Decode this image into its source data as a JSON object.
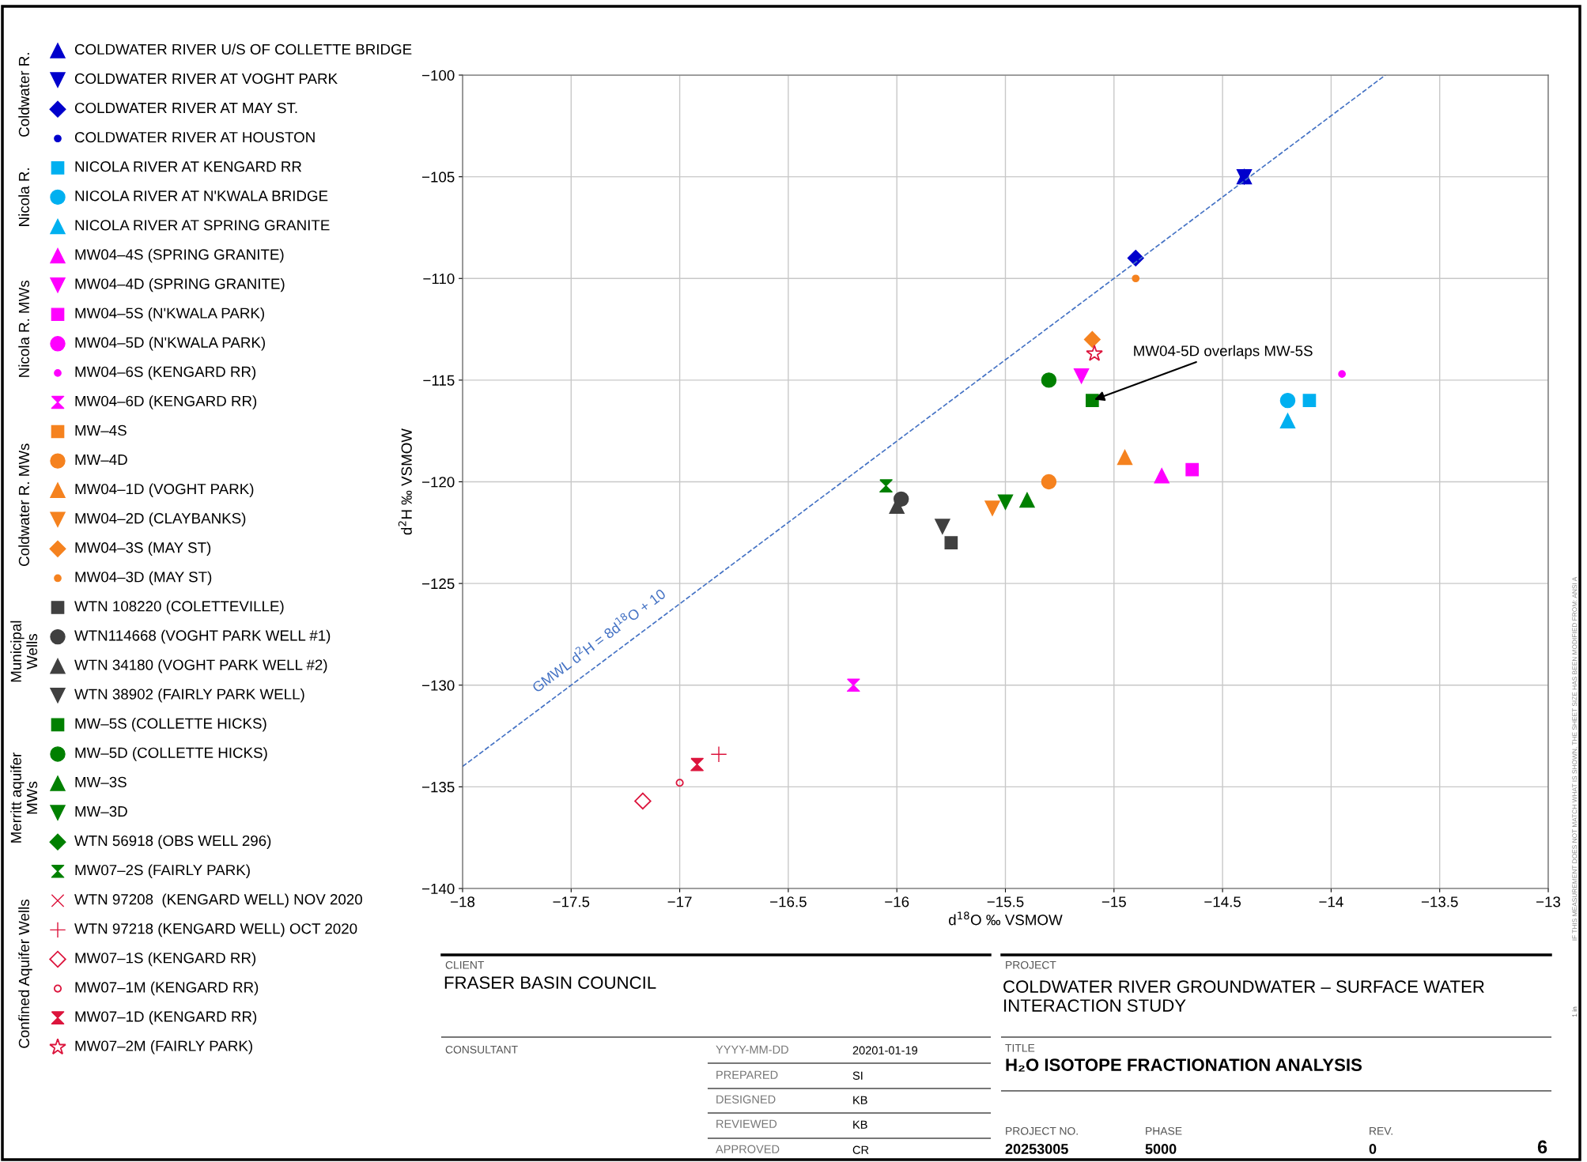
{
  "chart_data": {
    "type": "scatter",
    "title": "H₂O ISOTOPE FRACTIONATION ANALYSIS",
    "xlabel": "d$^{18}$O ‰ VSMOW",
    "ylabel": "d$^{2}$H ‰ VSMOW",
    "xlim": [
      -18,
      -13
    ],
    "ylim": [
      -140,
      -100
    ],
    "xticks": [
      {
        "value": -18,
        "label": "−18"
      },
      {
        "value": -17.5,
        "label": "−17.5"
      },
      {
        "value": -17,
        "label": "−17"
      },
      {
        "value": -16.5,
        "label": "−16.5"
      },
      {
        "value": -16,
        "label": "−16"
      },
      {
        "value": -15.5,
        "label": "−15.5"
      },
      {
        "value": -15,
        "label": "−15"
      },
      {
        "value": -14.5,
        "label": "−14.5"
      },
      {
        "value": -14,
        "label": "−14"
      },
      {
        "value": -13.5,
        "label": "−13.5"
      },
      {
        "value": -13,
        "label": "−13"
      }
    ],
    "yticks": [
      {
        "value": -140,
        "label": "−140"
      },
      {
        "value": -135,
        "label": "−135"
      },
      {
        "value": -130,
        "label": "−130"
      },
      {
        "value": -125,
        "label": "−125"
      },
      {
        "value": -120,
        "label": "−120"
      },
      {
        "value": -115,
        "label": "−115"
      },
      {
        "value": -110,
        "label": "−110"
      },
      {
        "value": -105,
        "label": "−105"
      },
      {
        "value": -100,
        "label": "−100"
      }
    ],
    "grid": true,
    "legend": "left",
    "series": [
      {
        "name": "COLDWATER RIVER U/S OF COLLETTE BRIDGE",
        "color": "#0000cc",
        "marker": "triangle",
        "x": [
          -14.4
        ],
        "values": [
          -105
        ]
      },
      {
        "name": "COLDWATER RIVER AT VOGHT PARK",
        "color": "#0000cc",
        "marker": "triangle_down",
        "x": [
          -14.4
        ],
        "values": [
          -105
        ]
      },
      {
        "name": "COLDWATER RIVER AT MAY ST.",
        "color": "#0000cc",
        "marker": "diamond",
        "x": [
          -14.9
        ],
        "values": [
          -109
        ]
      },
      {
        "name": "COLDWATER RIVER AT HOUSTON",
        "color": "#0000cc",
        "marker": "point",
        "x": [
          null
        ],
        "values": [
          null
        ]
      },
      {
        "name": "NICOLA RIVER AT KENGARD RR",
        "color": "#00b0f0",
        "marker": "square",
        "x": [
          -14.1
        ],
        "values": [
          -116
        ]
      },
      {
        "name": "NICOLA RIVER AT N'KWALA BRIDGE",
        "color": "#00b0f0",
        "marker": "circle",
        "x": [
          -14.2
        ],
        "values": [
          -116
        ]
      },
      {
        "name": "NICOLA RIVER AT SPRING GRANITE",
        "color": "#00b0f0",
        "marker": "triangle",
        "x": [
          -14.2
        ],
        "values": [
          -117
        ]
      },
      {
        "name": "MW04–4S (SPRING GRANITE)",
        "color": "#ff00ff",
        "marker": "triangle",
        "x": [
          -14.78
        ],
        "values": [
          -119.7
        ]
      },
      {
        "name": "MW04–4D (SPRING GRANITE)",
        "color": "#ff00ff",
        "marker": "triangle_down",
        "x": [
          -15.15
        ],
        "values": [
          -114.8
        ]
      },
      {
        "name": "MW04–5S (N'KWALA PARK)",
        "color": "#ff00ff",
        "marker": "square",
        "x": [
          -14.64
        ],
        "values": [
          -119.4
        ]
      },
      {
        "name": "MW04–5D (N'KWALA PARK)",
        "color": "#ff00ff",
        "marker": "circle",
        "x": [
          null
        ],
        "values": [
          null
        ]
      },
      {
        "name": "MW04–6S (KENGARD RR)",
        "color": "#ff00ff",
        "marker": "point",
        "x": [
          -13.95
        ],
        "values": [
          -114.7
        ]
      },
      {
        "name": "MW04–6D (KENGARD RR)",
        "color": "#ff00ff",
        "x": [
          -16.2
        ],
        "values": [
          -130
        ]
      },
      {
        "name": "MW–4S",
        "color": "#f5821f",
        "marker": "square",
        "x": [
          null
        ],
        "values": [
          null
        ]
      },
      {
        "name": "MW–4D",
        "color": "#f5821f",
        "marker": "circle",
        "x": [
          -15.3
        ],
        "values": [
          -120
        ]
      },
      {
        "name": "MW04–1D (VOGHT PARK)",
        "color": "#f5821f",
        "marker": "triangle",
        "x": [
          -14.95
        ],
        "values": [
          -118.8
        ]
      },
      {
        "name": "MW04–2D (CLAYBANKS)",
        "color": "#f5821f",
        "marker": "triangle_down",
        "x": [
          -15.56
        ],
        "values": [
          -121.3
        ]
      },
      {
        "name": "MW04–3S (MAY ST)",
        "color": "#f5821f",
        "marker": "diamond",
        "x": [
          -15.1
        ],
        "values": [
          -113
        ]
      },
      {
        "name": "MW04–3D (MAY ST)",
        "color": "#f5821f",
        "marker": "point",
        "x": [
          -14.9
        ],
        "values": [
          -110
        ]
      },
      {
        "name": "WTN 108220 (COLETTEVILLE)",
        "color": "#404040",
        "marker": "square",
        "x": [
          -15.75
        ],
        "values": [
          -123
        ]
      },
      {
        "name": "WTN114668 (VOGHT PARK WELL #1)",
        "color": "#404040",
        "marker": "circle",
        "x": [
          -15.98
        ],
        "values": [
          -120.85
        ]
      },
      {
        "name": "WTN 34180 (VOGHT PARK WELL #2)",
        "color": "#404040",
        "marker": "triangle",
        "x": [
          -16.0
        ],
        "values": [
          -121.2
        ]
      },
      {
        "name": "WTN 38902 (FAIRLY PARK WELL)",
        "color": "#404040",
        "marker": "triangle_down",
        "x": [
          -15.79
        ],
        "values": [
          -122.2
        ]
      },
      {
        "name": "MW–5S (COLLETTE HICKS)",
        "color": "#008000",
        "marker": "square",
        "x": [
          -15.1
        ],
        "values": [
          -116
        ]
      },
      {
        "name": "MW–5D (COLLETTE HICKS)",
        "color": "#008000",
        "marker": "circle",
        "x": [
          -15.3
        ],
        "values": [
          -115
        ]
      },
      {
        "name": "MW–3S",
        "color": "#008000",
        "marker": "triangle",
        "x": [
          -15.4
        ],
        "values": [
          -120.9
        ]
      },
      {
        "name": "MW–3D",
        "color": "#008000",
        "marker": "triangle_down",
        "x": [
          -15.5
        ],
        "values": [
          -121
        ]
      },
      {
        "name": "WTN 56918 (OBS WELL 296)",
        "color": "#008000",
        "marker": "diamond",
        "x": [
          null
        ],
        "values": [
          null
        ]
      },
      {
        "name": "MW07–2S (FAIRLY PARK)",
        "color": "#008000",
        "x": [
          -16.05
        ],
        "values": [
          -120.2
        ]
      },
      {
        "name": "WTN 97208  (KENGARD WELL) NOV 2020",
        "color": "#dc143c",
        "marker": "x",
        "x": [
          null
        ],
        "values": [
          null
        ]
      },
      {
        "name": "WTN 97218 (KENGARD WELL) OCT 2020",
        "color": "#dc143c",
        "marker": "plus",
        "x": [
          -16.82
        ],
        "values": [
          -133.4
        ]
      },
      {
        "name": "MW07–1S (KENGARD RR)",
        "color": "#dc143c",
        "marker": "diamond_open",
        "x": [
          -17.17
        ],
        "values": [
          -135.7
        ]
      },
      {
        "name": "MW07–1M (KENGARD RR)",
        "color": "#dc143c",
        "marker": "circle_open_small",
        "x": [
          -17.0
        ],
        "values": [
          -134.8
        ]
      },
      {
        "name": "MW07–1D (KENGARD RR)",
        "color": "#dc143c",
        "x": [
          -16.92
        ],
        "values": [
          -133.9
        ]
      },
      {
        "name": "MW07–2M (FAIRLY PARK)",
        "color": "#dc143c",
        "marker": "star_open",
        "x": [
          -15.09
        ],
        "values": [
          -113.7
        ]
      },
      {
        "name": "GMWL d$^{2}$H = 8d$^{18}$O + 10",
        "type": "line",
        "color": "#4472c4",
        "line_style": "dashed",
        "x": [
          -18,
          -13.75
        ],
        "values": [
          -134,
          -100
        ]
      }
    ],
    "annotations": [
      "Coldwater R.",
      "Nicola R.",
      "Nicola R. MWs",
      "Coldwater R. MWs",
      "Municipal\nWells",
      "Merritt aquifer\nMWs",
      "Confined Aquifer Wells",
      "CLIENT",
      "FRASER BASIN COUNCIL",
      "PROJECT",
      "COLDWATER RIVER GROUNDWATER – SURFACE WATER\nINTERACTION STUDY",
      "CONSULTANT",
      "YYYY-MM-DD",
      "20201-01-19",
      "PREPARED",
      "SI",
      "DESIGNED",
      "KB",
      "REVIEWED",
      "KB",
      "APPROVED",
      "CR",
      "TITLE",
      "PROJECT NO.",
      "20253005",
      "PHASE",
      "5000",
      "REV.",
      "0",
      "6",
      "IF THIS MEASUREMENT DOES NOT MATCH WHAT IS SHOWN, THE SHEET SIZE HAS BEEN MODIFIED FROM: ANSI A",
      "1 in",
      {
        "text": "MW04-5D overlaps MW-5S",
        "x": -15.1,
        "y": -116
      }
    ]
  }
}
